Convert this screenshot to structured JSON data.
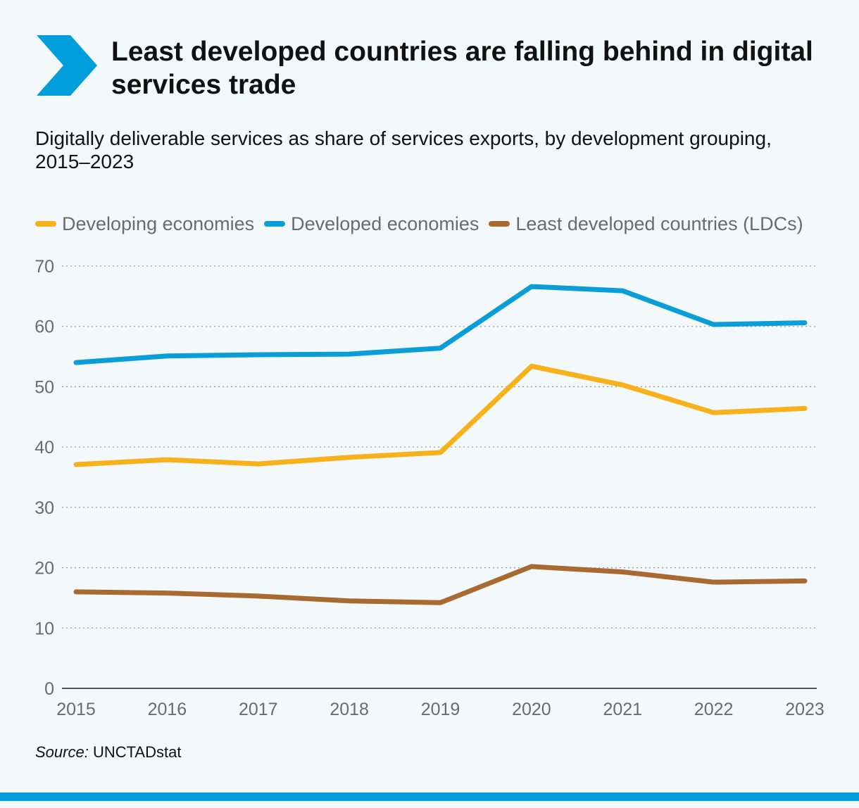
{
  "header": {
    "title": "Least developed countries are falling behind in digital services trade",
    "subtitle": "Digitally deliverable services as share of services exports, by development grouping, 2015–2023"
  },
  "source": {
    "label": "Source:",
    "text": "UNCTADstat"
  },
  "colors": {
    "accent": "#009edb",
    "developing": "#f8b11b",
    "developed": "#0a9ed8",
    "ldc": "#a86a30",
    "grid": "#9a9a9a",
    "tick_text": "#6b6b6b"
  },
  "chart_data": {
    "type": "line",
    "title": "Digitally deliverable services as share of services exports, by development grouping, 2015–2023",
    "xlabel": "",
    "ylabel": "",
    "x": [
      "2015",
      "2016",
      "2017",
      "2018",
      "2019",
      "2020",
      "2021",
      "2022",
      "2023"
    ],
    "ylim": [
      0,
      70
    ],
    "yticks": [
      0,
      10,
      20,
      30,
      40,
      50,
      60,
      70
    ],
    "grid": true,
    "legend_position": "top-left",
    "series": [
      {
        "name": "Developing economies",
        "color": "#f8b11b",
        "values": [
          37.1,
          37.9,
          37.2,
          38.3,
          39.1,
          53.4,
          50.3,
          45.7,
          46.4
        ]
      },
      {
        "name": "Developed economies",
        "color": "#0a9ed8",
        "values": [
          54.0,
          55.1,
          55.3,
          55.4,
          56.4,
          66.6,
          65.9,
          60.3,
          60.6
        ]
      },
      {
        "name": "Least developed countries (LDCs)",
        "color": "#a86a30",
        "values": [
          16.0,
          15.8,
          15.3,
          14.5,
          14.2,
          20.2,
          19.3,
          17.6,
          17.8
        ]
      }
    ]
  }
}
